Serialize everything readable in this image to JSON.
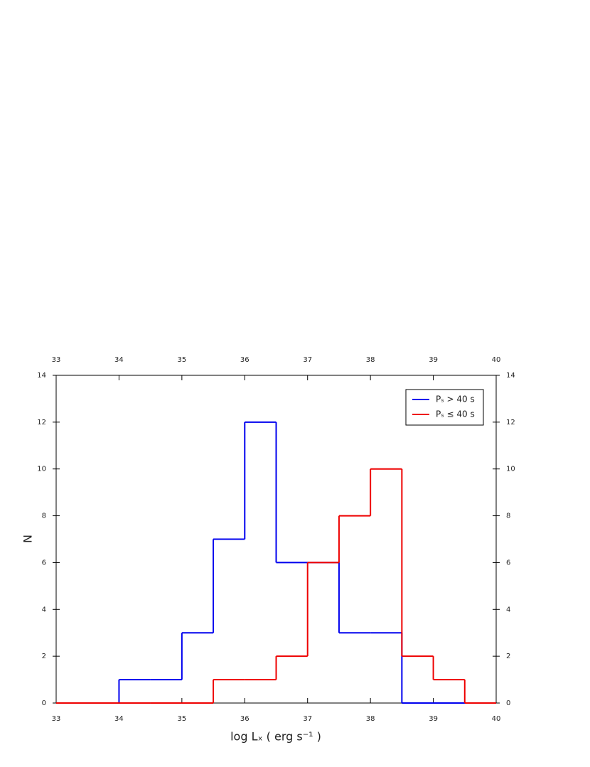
{
  "chart_data": {
    "type": "histogram",
    "x_label": "log Lₓ ( erg s⁻¹ )",
    "y_label": "N",
    "bins": [
      33,
      33.5,
      34,
      34.5,
      35,
      35.5,
      36,
      36.5,
      37,
      37.5,
      38,
      38.5,
      39,
      39.5,
      40
    ],
    "series": [
      {
        "name": "Pₛ > 40 s",
        "color": "#0000ee",
        "values": [
          0,
          0,
          1,
          1,
          3,
          7,
          12,
          6,
          6,
          3,
          3,
          0,
          0,
          0
        ]
      },
      {
        "name": "Pₛ ≤ 40 s",
        "color": "#ee0000",
        "values": [
          0,
          0,
          0,
          0,
          0,
          1,
          1,
          2,
          6,
          8,
          10,
          2,
          1,
          0
        ]
      }
    ],
    "xlim": [
      33,
      40
    ],
    "xticks": [
      33,
      34,
      35,
      36,
      37,
      38,
      39,
      40
    ],
    "ylim": [
      0,
      14
    ],
    "yticks": [
      0,
      2,
      4,
      6,
      8,
      10,
      12,
      14
    ],
    "legend": "upper right"
  }
}
